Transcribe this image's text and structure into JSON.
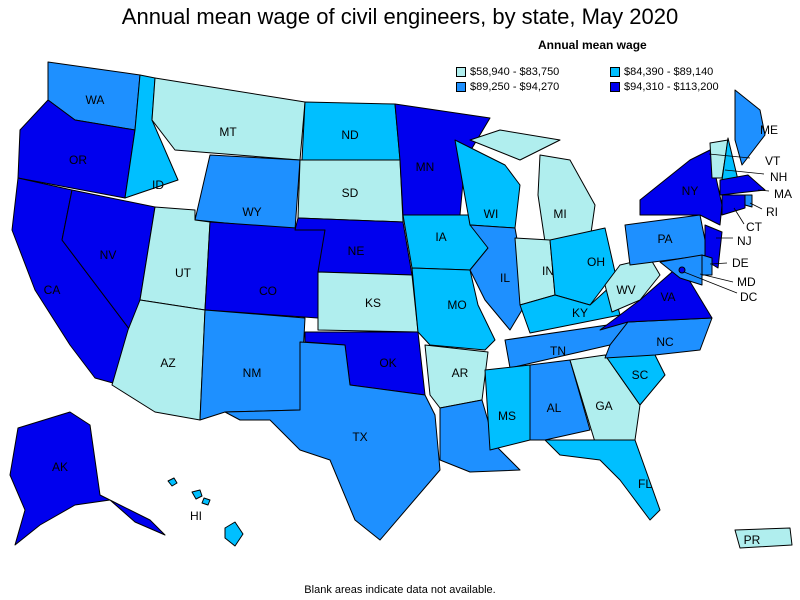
{
  "title": "Annual mean wage of civil engineers, by state, May 2020",
  "legend": {
    "title": "Annual mean wage",
    "items": [
      {
        "label": "$58,940 - $83,750",
        "color": "#b0eeee"
      },
      {
        "label": "$84,390 - $89,140",
        "color": "#00bfff"
      },
      {
        "label": "$89,250 - $94,270",
        "color": "#1e90ff"
      },
      {
        "label": "$94,310 - $113,200",
        "color": "#0000ee"
      }
    ]
  },
  "footnote": "Blank areas indicate data not available.",
  "states": {
    "WA": 2,
    "OR": 3,
    "CA": 3,
    "NV": 3,
    "ID": 1,
    "MT": 0,
    "WY": 2,
    "UT": 0,
    "AZ": 0,
    "CO": 3,
    "NM": 2,
    "ND": 1,
    "SD": 0,
    "NE": 3,
    "KS": 0,
    "OK": 3,
    "TX": 2,
    "MN": 3,
    "IA": 1,
    "MO": 1,
    "AR": 0,
    "LA": 2,
    "WI": 1,
    "IL": 2,
    "MI": 0,
    "IN": 0,
    "OH": 1,
    "KY": 1,
    "TN": 2,
    "MS": 1,
    "AL": 2,
    "GA": 0,
    "FL": 1,
    "SC": 1,
    "NC": 2,
    "VA": 3,
    "WV": 0,
    "PA": 2,
    "NY": 3,
    "VT": 0,
    "NH": 1,
    "ME": 2,
    "MA": 3,
    "RI": 2,
    "CT": 3,
    "NJ": 3,
    "DE": 2,
    "MD": 2,
    "DC": 3,
    "AK": 3,
    "HI": 1,
    "PR": 0
  }
}
